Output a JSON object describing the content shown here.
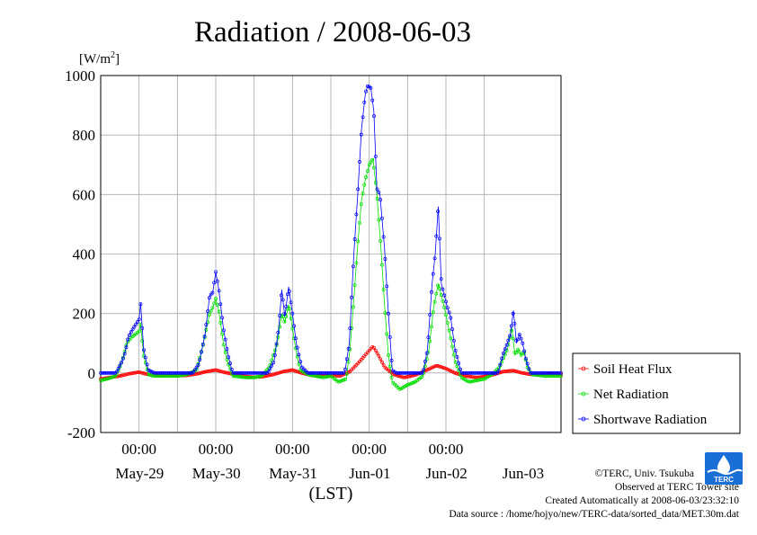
{
  "title": "Radiation / 2008-06-03",
  "footer": {
    "copyright": "©TERC, Univ. Tsukuba",
    "observed": "Observed at TERC Tower site",
    "created": "Created Automatically at 2008-06-03/23:32:10",
    "source": "Data source : /home/hojyo/new/TERC-data/sorted_data/MET.30m.dat"
  },
  "logo_text": "TERC",
  "colors": {
    "soil": "#ff0000",
    "net": "#00dd00",
    "short": "#0000ff",
    "grid": "#aaaaaa"
  },
  "chart_data": {
    "type": "line",
    "title": "Radiation / 2008-06-03",
    "ylabel": "[W/m²]",
    "xlabel": "(LST)",
    "ylim": [
      -200,
      1000
    ],
    "yticks": [
      -200,
      0,
      200,
      400,
      600,
      800,
      1000
    ],
    "xlim": [
      0,
      6
    ],
    "x_unit": "days since May-28 12:00 LST",
    "xtick_label": "00:00",
    "xticks": [
      0.5,
      1.5,
      2.5,
      3.5,
      4.5
    ],
    "date_labels": [
      {
        "x": 1,
        "label": "May-29"
      },
      {
        "x": 2,
        "label": "May-30"
      },
      {
        "x": 3,
        "label": "May-31"
      },
      {
        "x": 4,
        "label": "Jun-01"
      },
      {
        "x": 5,
        "label": "Jun-02"
      },
      {
        "x": 6,
        "label": "Jun-03"
      }
    ],
    "grid": true,
    "legend_position": "right",
    "series": [
      {
        "name": "Soil Heat Flux",
        "color": "#ff0000",
        "points": [
          [
            0.0,
            -20
          ],
          [
            0.12,
            -15
          ],
          [
            0.25,
            -10
          ],
          [
            0.38,
            -2
          ],
          [
            0.5,
            3
          ],
          [
            0.62,
            -5
          ],
          [
            0.75,
            -8
          ],
          [
            0.9,
            -10
          ],
          [
            1.0,
            -9
          ],
          [
            1.12,
            -8
          ],
          [
            1.25,
            -3
          ],
          [
            1.38,
            5
          ],
          [
            1.5,
            10
          ],
          [
            1.62,
            2
          ],
          [
            1.75,
            -5
          ],
          [
            1.9,
            -12
          ],
          [
            2.0,
            -14
          ],
          [
            2.12,
            -12
          ],
          [
            2.25,
            -5
          ],
          [
            2.38,
            5
          ],
          [
            2.5,
            10
          ],
          [
            2.62,
            0
          ],
          [
            2.75,
            -8
          ],
          [
            2.9,
            -10
          ],
          [
            3.0,
            -8
          ],
          [
            3.12,
            -10
          ],
          [
            3.25,
            5
          ],
          [
            3.38,
            40
          ],
          [
            3.48,
            70
          ],
          [
            3.55,
            90
          ],
          [
            3.62,
            60
          ],
          [
            3.7,
            20
          ],
          [
            3.82,
            -5
          ],
          [
            3.95,
            -15
          ],
          [
            4.05,
            -10
          ],
          [
            4.12,
            -5
          ],
          [
            4.25,
            10
          ],
          [
            4.38,
            25
          ],
          [
            4.5,
            15
          ],
          [
            4.62,
            0
          ],
          [
            4.75,
            -10
          ],
          [
            4.9,
            -15
          ],
          [
            5.0,
            -12
          ],
          [
            5.12,
            -5
          ],
          [
            5.25,
            5
          ],
          [
            5.38,
            8
          ],
          [
            5.5,
            0
          ],
          [
            5.62,
            -5
          ],
          [
            5.75,
            -5
          ],
          [
            5.9,
            -3
          ],
          [
            6.0,
            -5
          ]
        ]
      },
      {
        "name": "Net Radiation",
        "color": "#00dd00",
        "points": [
          [
            0.0,
            -25
          ],
          [
            0.08,
            -20
          ],
          [
            0.2,
            -10
          ],
          [
            0.28,
            40
          ],
          [
            0.34,
            100
          ],
          [
            0.4,
            120
          ],
          [
            0.45,
            130
          ],
          [
            0.5,
            140
          ],
          [
            0.52,
            165
          ],
          [
            0.56,
            60
          ],
          [
            0.62,
            -5
          ],
          [
            0.7,
            -10
          ],
          [
            0.9,
            -10
          ],
          [
            1.0,
            -10
          ],
          [
            1.12,
            -5
          ],
          [
            1.25,
            10
          ],
          [
            1.33,
            90
          ],
          [
            1.42,
            200
          ],
          [
            1.46,
            220
          ],
          [
            1.5,
            250
          ],
          [
            1.54,
            210
          ],
          [
            1.6,
            100
          ],
          [
            1.65,
            40
          ],
          [
            1.72,
            -10
          ],
          [
            1.9,
            -15
          ],
          [
            2.0,
            -15
          ],
          [
            2.1,
            -10
          ],
          [
            2.2,
            20
          ],
          [
            2.3,
            100
          ],
          [
            2.36,
            200
          ],
          [
            2.4,
            170
          ],
          [
            2.45,
            230
          ],
          [
            2.5,
            150
          ],
          [
            2.55,
            70
          ],
          [
            2.6,
            10
          ],
          [
            2.7,
            -5
          ],
          [
            2.9,
            -15
          ],
          [
            3.0,
            -10
          ],
          [
            3.1,
            -30
          ],
          [
            3.2,
            -20
          ],
          [
            3.25,
            80
          ],
          [
            3.3,
            250
          ],
          [
            3.35,
            430
          ],
          [
            3.4,
            580
          ],
          [
            3.45,
            650
          ],
          [
            3.5,
            700
          ],
          [
            3.55,
            720
          ],
          [
            3.6,
            600
          ],
          [
            3.65,
            430
          ],
          [
            3.7,
            230
          ],
          [
            3.75,
            60
          ],
          [
            3.8,
            -30
          ],
          [
            3.9,
            -55
          ],
          [
            4.0,
            -40
          ],
          [
            4.1,
            -30
          ],
          [
            4.2,
            -10
          ],
          [
            4.28,
            80
          ],
          [
            4.34,
            220
          ],
          [
            4.4,
            300
          ],
          [
            4.44,
            260
          ],
          [
            4.48,
            220
          ],
          [
            4.52,
            170
          ],
          [
            4.56,
            120
          ],
          [
            4.62,
            40
          ],
          [
            4.7,
            -15
          ],
          [
            4.8,
            -30
          ],
          [
            5.0,
            -20
          ],
          [
            5.1,
            -5
          ],
          [
            5.2,
            20
          ],
          [
            5.25,
            50
          ],
          [
            5.3,
            80
          ],
          [
            5.36,
            150
          ],
          [
            5.4,
            60
          ],
          [
            5.44,
            80
          ],
          [
            5.48,
            60
          ],
          [
            5.52,
            70
          ],
          [
            5.56,
            20
          ],
          [
            5.62,
            -5
          ],
          [
            5.8,
            -10
          ],
          [
            6.0,
            -10
          ]
        ]
      },
      {
        "name": "Shortwave Radiation",
        "color": "#0000ff",
        "points": [
          [
            0.0,
            0
          ],
          [
            0.2,
            0
          ],
          [
            0.28,
            40
          ],
          [
            0.32,
            70
          ],
          [
            0.36,
            120
          ],
          [
            0.4,
            140
          ],
          [
            0.45,
            160
          ],
          [
            0.5,
            180
          ],
          [
            0.52,
            235
          ],
          [
            0.56,
            80
          ],
          [
            0.62,
            10
          ],
          [
            0.7,
            0
          ],
          [
            1.2,
            0
          ],
          [
            1.28,
            30
          ],
          [
            1.36,
            130
          ],
          [
            1.42,
            260
          ],
          [
            1.46,
            270
          ],
          [
            1.5,
            340
          ],
          [
            1.54,
            280
          ],
          [
            1.6,
            150
          ],
          [
            1.66,
            60
          ],
          [
            1.72,
            0
          ],
          [
            2.18,
            0
          ],
          [
            2.26,
            40
          ],
          [
            2.32,
            150
          ],
          [
            2.36,
            280
          ],
          [
            2.4,
            190
          ],
          [
            2.45,
            290
          ],
          [
            2.5,
            200
          ],
          [
            2.55,
            100
          ],
          [
            2.62,
            20
          ],
          [
            2.7,
            0
          ],
          [
            3.18,
            0
          ],
          [
            3.24,
            100
          ],
          [
            3.3,
            400
          ],
          [
            3.35,
            600
          ],
          [
            3.4,
            820
          ],
          [
            3.45,
            940
          ],
          [
            3.48,
            965
          ],
          [
            3.52,
            960
          ],
          [
            3.56,
            880
          ],
          [
            3.6,
            620
          ],
          [
            3.64,
            600
          ],
          [
            3.7,
            420
          ],
          [
            3.75,
            200
          ],
          [
            3.8,
            10
          ],
          [
            3.85,
            0
          ],
          [
            4.2,
            0
          ],
          [
            4.26,
            80
          ],
          [
            4.32,
            300
          ],
          [
            4.36,
            400
          ],
          [
            4.4,
            560
          ],
          [
            4.44,
            300
          ],
          [
            4.48,
            260
          ],
          [
            4.52,
            220
          ],
          [
            4.56,
            190
          ],
          [
            4.62,
            80
          ],
          [
            4.7,
            0
          ],
          [
            5.18,
            0
          ],
          [
            5.24,
            60
          ],
          [
            5.3,
            100
          ],
          [
            5.34,
            130
          ],
          [
            5.38,
            210
          ],
          [
            5.42,
            100
          ],
          [
            5.46,
            130
          ],
          [
            5.5,
            100
          ],
          [
            5.54,
            50
          ],
          [
            5.6,
            0
          ],
          [
            6.0,
            0
          ]
        ]
      }
    ]
  }
}
